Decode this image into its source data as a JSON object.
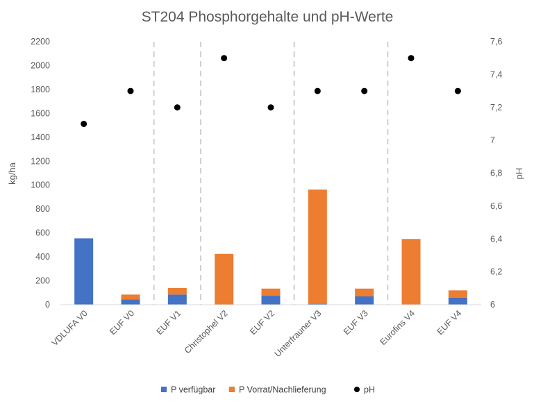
{
  "chart_data": {
    "type": "bar",
    "title": "ST204 Phosphorgehalte und pH-Werte",
    "ylabel": "kg/ha",
    "y2label": "pH",
    "ylim": [
      0,
      2200
    ],
    "y2lim": [
      6,
      7.6
    ],
    "yticks": [
      "0",
      "200",
      "400",
      "600",
      "800",
      "1000",
      "1200",
      "1400",
      "1600",
      "1800",
      "2000",
      "2200"
    ],
    "y2ticks": [
      "6",
      "6,2",
      "6,4",
      "6,6",
      "6,8",
      "7",
      "7,2",
      "7,4",
      "7,6"
    ],
    "categories": [
      "VDLUFA V0",
      "EUF V0",
      "EUF V1",
      "Christophel V2",
      "EUF V2",
      "Unterfrauner V3",
      "EUF V3",
      "Eurofins V4",
      "EUF V4"
    ],
    "group_separators_after": [
      1,
      2,
      4,
      6
    ],
    "stacked": true,
    "series": [
      {
        "name": "P verfügbar",
        "type": "bar",
        "axis": "left",
        "color": "#4472C4",
        "values": [
          555,
          45,
          85,
          0,
          75,
          8,
          70,
          0,
          60
        ]
      },
      {
        "name": "P Vorrat/Nachlieferung",
        "type": "bar",
        "axis": "left",
        "color": "#ED7D31",
        "values": [
          0,
          40,
          55,
          425,
          60,
          955,
          65,
          550,
          60
        ]
      },
      {
        "name": "pH",
        "type": "scatter",
        "axis": "right",
        "color": "#000000",
        "values": [
          7.1,
          7.3,
          7.2,
          7.5,
          7.2,
          7.3,
          7.3,
          7.5,
          7.3
        ]
      }
    ],
    "legend_position": "bottom",
    "grid": false
  }
}
